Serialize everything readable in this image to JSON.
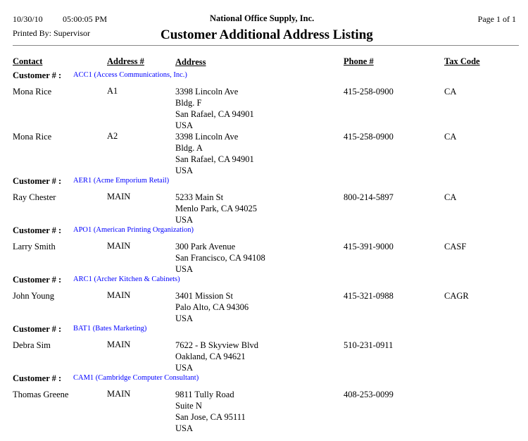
{
  "header": {
    "date": "10/30/10",
    "time": "05:00:05 PM",
    "company": "National Office Supply, Inc.",
    "page": "Page 1 of 1",
    "printed_by": "Printed By: Supervisor",
    "title": "Customer Additional Address Listing"
  },
  "columns": {
    "contact": "Contact",
    "address_no": "Address #",
    "address": "Address",
    "phone": "Phone #",
    "tax_code": "Tax Code"
  },
  "customer_label": "Customer # :",
  "customers": [
    {
      "id": "ACC1 (Access Communications, Inc.)",
      "records": [
        {
          "contact": "Mona Rice",
          "address_no": "A1",
          "address": [
            "3398  Lincoln Ave",
            "Bldg. F",
            "San Rafael, CA  94901",
            "USA"
          ],
          "phone": "415-258-0900",
          "tax_code": "CA"
        },
        {
          "contact": "Mona Rice",
          "address_no": "A2",
          "address": [
            "3398  Lincoln Ave",
            "Bldg. A",
            "San Rafael, CA  94901",
            "USA"
          ],
          "phone": "415-258-0900",
          "tax_code": "CA"
        }
      ]
    },
    {
      "id": "AER1 (Acme Emporium Retail)",
      "records": [
        {
          "contact": "Ray Chester",
          "address_no": "MAIN",
          "address": [
            "5233  Main St",
            "Menlo Park, CA  94025",
            "USA"
          ],
          "phone": "800-214-5897",
          "tax_code": "CA"
        }
      ]
    },
    {
      "id": "APO1 (American Printing Organization)",
      "records": [
        {
          "contact": "Larry Smith",
          "address_no": "MAIN",
          "address": [
            "300  Park Avenue",
            "San Francisco, CA  94108",
            "USA"
          ],
          "phone": "415-391-9000",
          "tax_code": "CASF"
        }
      ]
    },
    {
      "id": "ARC1 (Archer Kitchen & Cabinets)",
      "records": [
        {
          "contact": "John Young",
          "address_no": "MAIN",
          "address": [
            "3401  Mission St",
            "Palo Alto, CA  94306",
            "USA"
          ],
          "phone": "415-321-0988",
          "tax_code": "CAGR"
        }
      ]
    },
    {
      "id": "BAT1 (Bates Marketing)",
      "records": [
        {
          "contact": "Debra Sim",
          "address_no": "MAIN",
          "address": [
            "7622 - B Skyview Blvd",
            "Oakland, CA  94621",
            "USA"
          ],
          "phone": "510-231-0911",
          "tax_code": ""
        }
      ]
    },
    {
      "id": "CAM1 (Cambridge Computer Consultant)",
      "records": [
        {
          "contact": "Thomas Greene",
          "address_no": "MAIN",
          "address": [
            "9811  Tully Road",
            "Suite N",
            "San Jose, CA  95111",
            "USA"
          ],
          "phone": "408-253-0099",
          "tax_code": ""
        }
      ]
    }
  ]
}
